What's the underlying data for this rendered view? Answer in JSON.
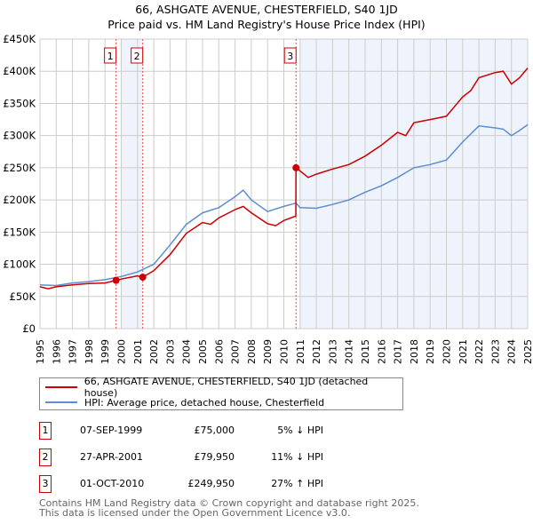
{
  "title_line1": "66, ASHGATE AVENUE, CHESTERFIELD, S40 1JD",
  "title_line2": "Price paid vs. HM Land Registry's House Price Index (HPI)",
  "chart_data": {
    "type": "line",
    "title": "66, ASHGATE AVENUE, CHESTERFIELD, S40 1JD — Price paid vs. HM Land Registry's House Price Index (HPI)",
    "xlim": [
      1995,
      2025
    ],
    "ylim": [
      0,
      450000
    ],
    "yticks": [
      0,
      50000,
      100000,
      150000,
      200000,
      250000,
      300000,
      350000,
      400000,
      450000
    ],
    "ytick_labels": [
      "£0",
      "£50K",
      "£100K",
      "£150K",
      "£200K",
      "£250K",
      "£300K",
      "£350K",
      "£400K",
      "£450K"
    ],
    "xticks": [
      1995,
      1996,
      1997,
      1998,
      1999,
      2000,
      2001,
      2002,
      2003,
      2004,
      2005,
      2006,
      2007,
      2008,
      2009,
      2010,
      2011,
      2012,
      2013,
      2014,
      2015,
      2016,
      2017,
      2018,
      2019,
      2020,
      2021,
      2022,
      2023,
      2024,
      2025
    ],
    "grid": true,
    "colors": {
      "property": "#cc0000",
      "hpi": "#5b8fd0",
      "shade": "#eef3fc"
    },
    "series": [
      {
        "name": "66, ASHGATE AVENUE, CHESTERFIELD, S40 1JD (detached house)",
        "x": [
          1995,
          1995.5,
          1996,
          1997,
          1998,
          1999,
          1999.68,
          2000,
          2001,
          2001.32,
          2002,
          2003,
          2004,
          2005,
          2005.5,
          2006,
          2007,
          2007.5,
          2008,
          2009,
          2009.5,
          2010,
          2010.74,
          2010.75,
          2011,
          2011.5,
          2012,
          2013,
          2014,
          2015,
          2016,
          2017,
          2017.5,
          2018,
          2019,
          2020,
          2021,
          2021.5,
          2022,
          2023,
          2023.5,
          2024,
          2024.5,
          2025
        ],
        "y": [
          65000,
          62000,
          65000,
          68000,
          70000,
          71000,
          75000,
          77000,
          82000,
          79950,
          90000,
          115000,
          148000,
          165000,
          162000,
          172000,
          185000,
          190000,
          180000,
          163000,
          160000,
          168000,
          175000,
          249950,
          245000,
          235000,
          240000,
          248000,
          255000,
          268000,
          285000,
          305000,
          300000,
          320000,
          325000,
          330000,
          360000,
          370000,
          390000,
          398000,
          400000,
          380000,
          390000,
          405000
        ]
      },
      {
        "name": "HPI: Average price, detached house, Chesterfield",
        "x": [
          1995,
          1996,
          1997,
          1998,
          1999,
          2000,
          2001,
          2002,
          2003,
          2004,
          2005,
          2006,
          2007,
          2007.5,
          2008,
          2009,
          2010,
          2010.75,
          2011,
          2012,
          2013,
          2014,
          2015,
          2016,
          2017,
          2018,
          2019,
          2020,
          2021,
          2022,
          2023,
          2023.5,
          2024,
          2024.5,
          2025
        ],
        "y": [
          68000,
          67000,
          71000,
          73000,
          76000,
          81000,
          88000,
          100000,
          130000,
          162000,
          180000,
          188000,
          205000,
          215000,
          200000,
          182000,
          190000,
          195000,
          188000,
          187000,
          193000,
          200000,
          212000,
          222000,
          235000,
          250000,
          255000,
          262000,
          290000,
          315000,
          312000,
          310000,
          300000,
          308000,
          317000
        ]
      }
    ],
    "sales": [
      {
        "label": "1",
        "x": 1999.68,
        "y": 75000
      },
      {
        "label": "2",
        "x": 2001.32,
        "y": 79950
      },
      {
        "label": "3",
        "x": 2010.75,
        "y": 249950
      }
    ]
  },
  "legend": {
    "property": "66, ASHGATE AVENUE, CHESTERFIELD, S40 1JD (detached house)",
    "hpi": "HPI: Average price, detached house, Chesterfield"
  },
  "transactions": [
    {
      "num": "1",
      "date": "07-SEP-1999",
      "price": "£75,000",
      "hpi": "5% ↓ HPI"
    },
    {
      "num": "2",
      "date": "27-APR-2001",
      "price": "£79,950",
      "hpi": "11% ↓ HPI"
    },
    {
      "num": "3",
      "date": "01-OCT-2010",
      "price": "£249,950",
      "hpi": "27% ↑ HPI"
    }
  ],
  "footer_line1": "Contains HM Land Registry data © Crown copyright and database right 2025.",
  "footer_line2": "This data is licensed under the Open Government Licence v3.0."
}
